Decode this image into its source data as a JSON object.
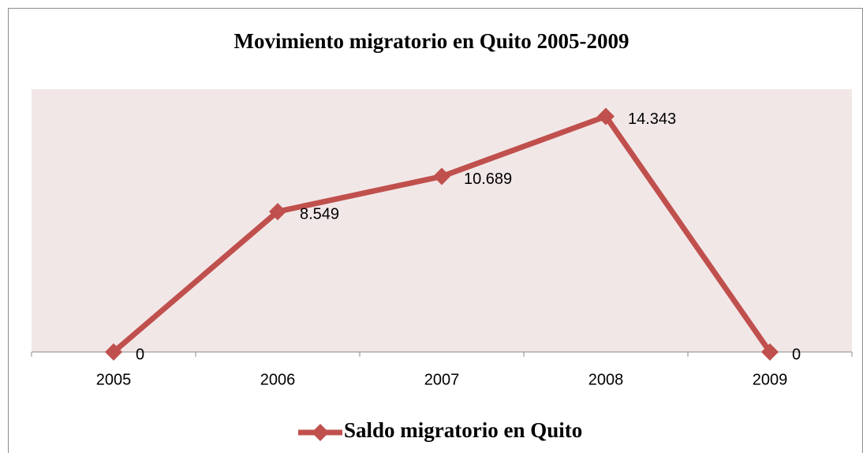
{
  "chart_data": {
    "type": "line",
    "title": "Movimiento migratorio en Quito 2005-2009",
    "categories": [
      "2005",
      "2006",
      "2007",
      "2008",
      "2009"
    ],
    "series": [
      {
        "name": "Saldo migratorio en Quito",
        "color": "#c0504d",
        "values": [
          0,
          8549,
          10689,
          14343,
          0
        ],
        "value_labels": [
          "0",
          "8.549",
          "10.689",
          "14.343",
          "0"
        ]
      }
    ],
    "ylim": [
      0,
      16000
    ],
    "legend": "bottom"
  }
}
